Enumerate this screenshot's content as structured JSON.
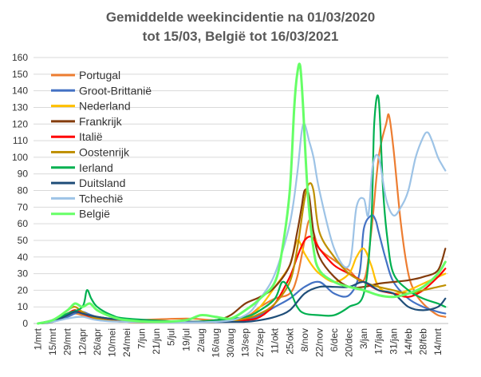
{
  "chart_data": {
    "type": "line",
    "title_line1": "Gemiddelde weekincidentie  na 01/03/2020",
    "title_line2": "tot 15/03, België tot 16/03/2021",
    "xlabel": "",
    "ylabel": "",
    "ylim": [
      0,
      160
    ],
    "yticks": [
      0,
      10,
      20,
      30,
      40,
      50,
      60,
      70,
      80,
      90,
      100,
      110,
      120,
      130,
      140,
      150,
      160
    ],
    "xticks": [
      "1/mrt",
      "15/mrt",
      "29/mrt",
      "12/apr",
      "26/apr",
      "10/mei",
      "24/mei",
      "7/jun",
      "21/jun",
      "5/jul",
      "19/jul",
      "2/aug",
      "16/aug",
      "30/aug",
      "13/sep",
      "27/sep",
      "11/okt",
      "25/okt",
      "8/nov",
      "22/nov",
      "6/dec",
      "20/dec",
      "3/jan",
      "17/jan",
      "31/jan",
      "14/feb",
      "28/feb",
      "14/mrt"
    ],
    "grid": "horizontal",
    "legend_position": "top-left",
    "series": [
      {
        "name": "Portugal",
        "color": "#ED7D31",
        "points": [
          [
            0,
            0
          ],
          [
            1,
            1
          ],
          [
            2,
            4
          ],
          [
            2.5,
            6
          ],
          [
            3,
            5
          ],
          [
            4,
            3
          ],
          [
            6,
            2
          ],
          [
            10,
            3
          ],
          [
            12,
            2
          ],
          [
            14,
            4
          ],
          [
            15,
            10
          ],
          [
            16,
            15
          ],
          [
            17,
            18
          ],
          [
            17.5,
            28
          ],
          [
            18,
            50
          ],
          [
            18.3,
            62
          ],
          [
            18.6,
            55
          ],
          [
            19,
            45
          ],
          [
            20,
            38
          ],
          [
            21,
            32
          ],
          [
            22,
            26
          ],
          [
            22.5,
            55
          ],
          [
            23,
            100
          ],
          [
            23.5,
            120
          ],
          [
            23.7,
            125
          ],
          [
            24,
            105
          ],
          [
            24.5,
            60
          ],
          [
            25,
            30
          ],
          [
            25.5,
            18
          ],
          [
            26,
            12
          ],
          [
            26.5,
            8
          ],
          [
            27,
            5
          ],
          [
            27.5,
            4
          ]
        ]
      },
      {
        "name": "Groot-Brittanië",
        "color": "#4472C4",
        "points": [
          [
            0,
            0
          ],
          [
            1,
            1
          ],
          [
            2,
            4
          ],
          [
            2.5,
            6
          ],
          [
            3,
            7
          ],
          [
            4,
            4
          ],
          [
            6,
            2
          ],
          [
            10,
            1
          ],
          [
            13,
            1
          ],
          [
            14,
            2
          ],
          [
            15,
            5
          ],
          [
            16,
            10
          ],
          [
            17,
            15
          ],
          [
            18,
            22
          ],
          [
            19,
            25
          ],
          [
            20,
            18
          ],
          [
            21,
            17
          ],
          [
            21.7,
            30
          ],
          [
            22,
            57
          ],
          [
            22.5,
            65
          ],
          [
            22.8,
            62
          ],
          [
            23,
            55
          ],
          [
            23.5,
            38
          ],
          [
            24,
            25
          ],
          [
            25,
            15
          ],
          [
            26,
            10
          ],
          [
            27,
            7
          ],
          [
            27.5,
            6
          ]
        ]
      },
      {
        "name": "Nederland",
        "color": "#FFC000",
        "points": [
          [
            0,
            0
          ],
          [
            1,
            1
          ],
          [
            2,
            5
          ],
          [
            2.5,
            7
          ],
          [
            3,
            6
          ],
          [
            4,
            3
          ],
          [
            6,
            1
          ],
          [
            12,
            1
          ],
          [
            14,
            3
          ],
          [
            15,
            10
          ],
          [
            16,
            22
          ],
          [
            17,
            35
          ],
          [
            17.5,
            50
          ],
          [
            18,
            42
          ],
          [
            18.5,
            35
          ],
          [
            19,
            30
          ],
          [
            20,
            25
          ],
          [
            21,
            30
          ],
          [
            21.5,
            40
          ],
          [
            22,
            45
          ],
          [
            22.5,
            35
          ],
          [
            23,
            22
          ],
          [
            24,
            18
          ],
          [
            25,
            20
          ],
          [
            26,
            24
          ],
          [
            27,
            28
          ],
          [
            27.5,
            30
          ]
        ]
      },
      {
        "name": "Frankrijk",
        "color": "#843C0C",
        "points": [
          [
            0,
            0
          ],
          [
            1,
            2
          ],
          [
            2,
            6
          ],
          [
            2.5,
            8
          ],
          [
            3,
            6
          ],
          [
            4,
            4
          ],
          [
            6,
            2
          ],
          [
            10,
            1
          ],
          [
            12,
            2
          ],
          [
            13,
            5
          ],
          [
            14,
            12
          ],
          [
            15,
            16
          ],
          [
            16,
            22
          ],
          [
            17,
            35
          ],
          [
            17.5,
            55
          ],
          [
            17.8,
            70
          ],
          [
            18,
            80
          ],
          [
            18.3,
            77
          ],
          [
            18.6,
            55
          ],
          [
            19,
            40
          ],
          [
            20,
            28
          ],
          [
            21,
            22
          ],
          [
            22,
            22
          ],
          [
            23,
            24
          ],
          [
            24,
            25
          ],
          [
            25,
            26
          ],
          [
            26,
            28
          ],
          [
            27,
            32
          ],
          [
            27.5,
            45
          ]
        ]
      },
      {
        "name": "Italië",
        "color": "#FF0000",
        "points": [
          [
            0,
            0
          ],
          [
            1,
            2
          ],
          [
            2,
            6
          ],
          [
            2.5,
            8
          ],
          [
            3,
            6
          ],
          [
            4,
            3
          ],
          [
            6,
            1
          ],
          [
            12,
            1
          ],
          [
            14,
            2
          ],
          [
            15,
            4
          ],
          [
            16,
            12
          ],
          [
            17,
            28
          ],
          [
            17.5,
            40
          ],
          [
            18,
            50
          ],
          [
            18.5,
            52
          ],
          [
            19,
            45
          ],
          [
            20,
            35
          ],
          [
            21,
            30
          ],
          [
            22,
            25
          ],
          [
            23,
            20
          ],
          [
            24,
            18
          ],
          [
            25,
            16
          ],
          [
            26,
            20
          ],
          [
            27,
            28
          ],
          [
            27.5,
            33
          ]
        ]
      },
      {
        "name": "Oostenrijk",
        "color": "#BF9000",
        "points": [
          [
            0,
            0
          ],
          [
            1,
            2
          ],
          [
            2,
            8
          ],
          [
            2.5,
            10
          ],
          [
            3,
            7
          ],
          [
            4,
            3
          ],
          [
            6,
            1
          ],
          [
            12,
            1
          ],
          [
            14,
            3
          ],
          [
            15,
            6
          ],
          [
            16,
            12
          ],
          [
            17,
            25
          ],
          [
            17.5,
            45
          ],
          [
            18,
            75
          ],
          [
            18.3,
            84
          ],
          [
            18.6,
            80
          ],
          [
            19,
            55
          ],
          [
            20,
            40
          ],
          [
            21,
            30
          ],
          [
            22,
            25
          ],
          [
            23,
            22
          ],
          [
            24,
            20
          ],
          [
            25,
            18
          ],
          [
            26,
            20
          ],
          [
            27,
            22
          ],
          [
            27.5,
            23
          ]
        ]
      },
      {
        "name": "Ierland",
        "color": "#00B050",
        "points": [
          [
            0,
            0
          ],
          [
            1,
            2
          ],
          [
            2,
            6
          ],
          [
            3,
            10
          ],
          [
            3.3,
            20
          ],
          [
            3.6,
            15
          ],
          [
            4,
            10
          ],
          [
            5,
            5
          ],
          [
            6,
            3
          ],
          [
            10,
            1
          ],
          [
            12,
            2
          ],
          [
            14,
            4
          ],
          [
            15,
            8
          ],
          [
            16,
            15
          ],
          [
            16.5,
            25
          ],
          [
            17,
            20
          ],
          [
            17.5,
            10
          ],
          [
            18,
            6
          ],
          [
            19,
            5
          ],
          [
            20,
            5
          ],
          [
            21,
            10
          ],
          [
            22,
            18
          ],
          [
            22.5,
            60
          ],
          [
            22.7,
            120
          ],
          [
            23,
            135
          ],
          [
            23.3,
            80
          ],
          [
            23.6,
            50
          ],
          [
            24,
            30
          ],
          [
            25,
            20
          ],
          [
            26,
            15
          ],
          [
            27,
            12
          ],
          [
            27.5,
            10
          ]
        ]
      },
      {
        "name": "Duitsland",
        "color": "#1F4E79",
        "points": [
          [
            0,
            0
          ],
          [
            1,
            1
          ],
          [
            2,
            5
          ],
          [
            2.5,
            7
          ],
          [
            3,
            6
          ],
          [
            4,
            4
          ],
          [
            6,
            2
          ],
          [
            10,
            1
          ],
          [
            12,
            1
          ],
          [
            14,
            1
          ],
          [
            15,
            2
          ],
          [
            16,
            4
          ],
          [
            17,
            8
          ],
          [
            18,
            18
          ],
          [
            19,
            22
          ],
          [
            20,
            22
          ],
          [
            21,
            22
          ],
          [
            22,
            25
          ],
          [
            23,
            20
          ],
          [
            24,
            18
          ],
          [
            25,
            10
          ],
          [
            26,
            8
          ],
          [
            27,
            10
          ],
          [
            27.5,
            15
          ]
        ]
      },
      {
        "name": "Tchechië",
        "color": "#9DC3E6",
        "points": [
          [
            0,
            0
          ],
          [
            1,
            1
          ],
          [
            2,
            3
          ],
          [
            3,
            4
          ],
          [
            4,
            2
          ],
          [
            6,
            1
          ],
          [
            12,
            1
          ],
          [
            14,
            5
          ],
          [
            15,
            15
          ],
          [
            16,
            30
          ],
          [
            17,
            60
          ],
          [
            17.5,
            90
          ],
          [
            17.8,
            115
          ],
          [
            18,
            120
          ],
          [
            18.3,
            110
          ],
          [
            18.6,
            100
          ],
          [
            19,
            80
          ],
          [
            20,
            45
          ],
          [
            21,
            35
          ],
          [
            21.5,
            70
          ],
          [
            22,
            75
          ],
          [
            22.3,
            65
          ],
          [
            22.6,
            95
          ],
          [
            23,
            100
          ],
          [
            23.5,
            75
          ],
          [
            24,
            65
          ],
          [
            24.5,
            70
          ],
          [
            25,
            80
          ],
          [
            25.5,
            100
          ],
          [
            26,
            112
          ],
          [
            26.3,
            115
          ],
          [
            26.6,
            110
          ],
          [
            27,
            100
          ],
          [
            27.3,
            95
          ],
          [
            27.5,
            92
          ]
        ]
      },
      {
        "name": "België",
        "color": "#66FF66",
        "points": [
          [
            0,
            0
          ],
          [
            1,
            2
          ],
          [
            2,
            8
          ],
          [
            2.5,
            12
          ],
          [
            3,
            10
          ],
          [
            3.5,
            12
          ],
          [
            4,
            8
          ],
          [
            5,
            4
          ],
          [
            6,
            2
          ],
          [
            8,
            1
          ],
          [
            10,
            2
          ],
          [
            11,
            5
          ],
          [
            12,
            4
          ],
          [
            13,
            3
          ],
          [
            14,
            8
          ],
          [
            15,
            15
          ],
          [
            16,
            25
          ],
          [
            16.5,
            45
          ],
          [
            17,
            80
          ],
          [
            17.3,
            130
          ],
          [
            17.5,
            150
          ],
          [
            17.7,
            155
          ],
          [
            17.9,
            130
          ],
          [
            18.2,
            80
          ],
          [
            18.6,
            45
          ],
          [
            19,
            32
          ],
          [
            20,
            25
          ],
          [
            21,
            22
          ],
          [
            22,
            20
          ],
          [
            23,
            17
          ],
          [
            24,
            16
          ],
          [
            25,
            18
          ],
          [
            26,
            22
          ],
          [
            27,
            30
          ],
          [
            27.5,
            37
          ]
        ]
      }
    ]
  }
}
